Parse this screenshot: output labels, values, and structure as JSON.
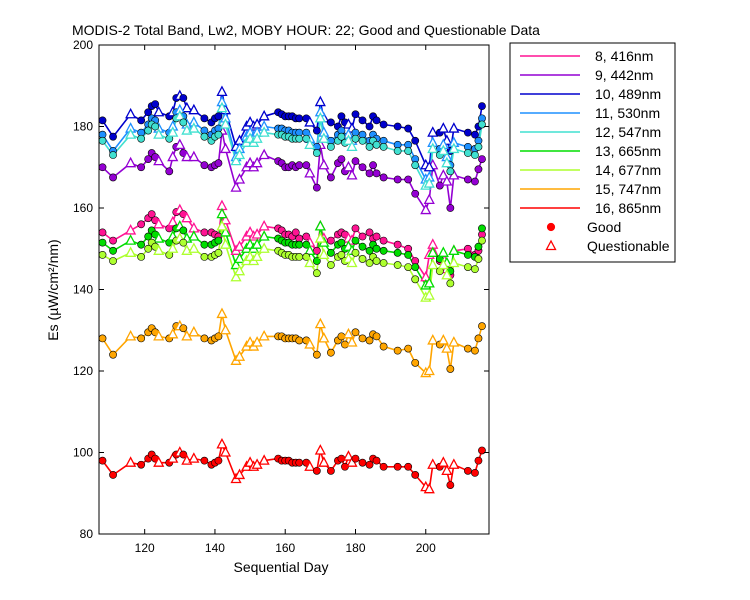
{
  "chart_data": {
    "type": "line",
    "title": "MODIS-2 Total Band,  Lw2, MOBY HOUR: 22;  Good and Questionable Data",
    "xlabel": "Sequential Day",
    "ylabel": "Es (µW/cm²/nm)",
    "xlim": [
      107,
      218
    ],
    "ylim": [
      80,
      200
    ],
    "xticks": [
      120,
      140,
      160,
      180,
      200
    ],
    "yticks": [
      80,
      100,
      120,
      140,
      160,
      180,
      200
    ],
    "grid": false,
    "legend_position": "right",
    "marker_legend": [
      {
        "label": "Good",
        "marker": "circle"
      },
      {
        "label": "Questionable",
        "marker": "triangle"
      }
    ],
    "x": [
      108,
      111,
      116,
      119,
      121,
      122,
      123,
      124,
      127,
      128,
      129,
      130,
      131,
      132,
      134,
      137,
      139,
      140,
      141,
      142,
      143,
      146,
      147,
      149,
      150,
      151,
      152,
      154,
      158,
      159,
      160,
      161,
      162,
      163,
      164,
      166,
      167,
      169,
      170,
      171,
      173,
      175,
      176,
      177,
      178,
      179,
      180,
      182,
      184,
      185,
      186,
      188,
      192,
      195,
      197,
      200,
      201,
      202,
      204,
      205,
      206,
      207,
      208,
      212,
      214,
      215,
      216
    ],
    "quality": [
      "G",
      "G",
      "Q",
      "G",
      "G",
      "G",
      "G",
      "Q",
      "G",
      "Q",
      "G",
      "Q",
      "G",
      "Q",
      "Q",
      "G",
      "G",
      "G",
      "G",
      "Q",
      "Q",
      "Q",
      "Q",
      "Q",
      "Q",
      "Q",
      "Q",
      "Q",
      "G",
      "G",
      "G",
      "G",
      "G",
      "G",
      "G",
      "G",
      "Q",
      "G",
      "Q",
      "Q",
      "G",
      "G",
      "G",
      "G",
      "Q",
      "Q",
      "G",
      "G",
      "G",
      "G",
      "G",
      "G",
      "G",
      "G",
      "G",
      "Q",
      "Q",
      "Q",
      "G",
      "Q",
      "Q",
      "G",
      "Q",
      "G",
      "G",
      "G",
      "G"
    ],
    "series": [
      {
        "name": "8, 416nm",
        "color": "#ff1493",
        "values": [
          154.0,
          152.0,
          154.5,
          156.0,
          157.5,
          158.5,
          157.0,
          156.0,
          155.0,
          156.5,
          159.0,
          159.5,
          158.5,
          157.5,
          155.0,
          154.0,
          154.0,
          153.5,
          153.0,
          160.5,
          157.0,
          149.5,
          150.5,
          153.0,
          154.0,
          153.0,
          153.5,
          155.5,
          155.0,
          154.5,
          153.5,
          153.5,
          153.0,
          154.0,
          152.5,
          153.0,
          151.5,
          149.5,
          155.5,
          152.5,
          152.0,
          153.5,
          154.0,
          153.5,
          152.5,
          152.0,
          155.0,
          153.0,
          154.0,
          152.5,
          153.0,
          152.0,
          151.0,
          150.0,
          147.0,
          143.0,
          148.5,
          151.0,
          147.0,
          147.5,
          145.0,
          143.5,
          149.5,
          150.0,
          148.5,
          149.5,
          153.5
        ]
      },
      {
        "name": "9, 442nm",
        "color": "#9400d3",
        "values": [
          170.0,
          167.5,
          171.0,
          170.0,
          172.0,
          173.5,
          172.5,
          171.5,
          169.0,
          172.5,
          175.0,
          175.5,
          173.5,
          172.5,
          172.5,
          170.5,
          170.0,
          170.5,
          171.0,
          179.0,
          174.5,
          165.0,
          167.0,
          170.0,
          171.0,
          170.0,
          171.0,
          173.0,
          171.5,
          171.0,
          170.0,
          170.0,
          170.5,
          170.0,
          170.5,
          170.5,
          168.5,
          165.0,
          175.5,
          170.5,
          167.5,
          171.0,
          172.0,
          169.0,
          170.0,
          168.0,
          171.5,
          170.0,
          168.5,
          170.5,
          168.5,
          167.5,
          167.0,
          167.0,
          163.5,
          159.5,
          162.0,
          170.5,
          165.5,
          168.0,
          166.5,
          160.0,
          168.0,
          167.0,
          166.5,
          169.5,
          172.0
        ]
      },
      {
        "name": "10, 489nm",
        "color": "#0000cd",
        "values": [
          181.5,
          177.5,
          183.0,
          181.5,
          183.5,
          185.0,
          185.5,
          183.5,
          182.5,
          183.5,
          187.0,
          187.5,
          187.0,
          184.5,
          184.0,
          182.0,
          181.0,
          182.0,
          182.5,
          188.5,
          184.0,
          175.0,
          176.5,
          180.0,
          181.0,
          180.0,
          180.5,
          182.5,
          183.5,
          183.0,
          182.5,
          182.5,
          182.5,
          182.0,
          182.0,
          182.0,
          181.0,
          179.0,
          186.0,
          182.0,
          181.0,
          180.0,
          182.5,
          181.0,
          180.5,
          179.5,
          183.0,
          181.5,
          180.0,
          182.5,
          181.5,
          180.5,
          180.0,
          179.5,
          176.5,
          170.5,
          170.0,
          178.5,
          178.5,
          179.5,
          176.5,
          174.0,
          179.5,
          178.5,
          178.0,
          180.0,
          185.0
        ]
      },
      {
        "name": "11, 530nm",
        "color": "#1e90ff",
        "values": [
          178.0,
          174.0,
          179.5,
          178.5,
          180.5,
          182.0,
          181.5,
          179.5,
          178.5,
          180.0,
          183.5,
          184.0,
          182.5,
          180.5,
          181.0,
          179.0,
          178.0,
          179.0,
          179.5,
          186.0,
          182.0,
          172.5,
          174.5,
          177.5,
          178.5,
          177.5,
          178.5,
          180.0,
          179.5,
          179.5,
          179.0,
          179.0,
          178.5,
          178.5,
          178.5,
          178.5,
          177.0,
          175.0,
          183.5,
          178.5,
          176.5,
          178.0,
          179.0,
          177.5,
          178.0,
          176.5,
          178.5,
          178.0,
          176.5,
          178.0,
          177.0,
          176.5,
          175.5,
          175.5,
          172.0,
          167.0,
          167.5,
          176.0,
          174.5,
          175.5,
          172.5,
          170.5,
          176.0,
          175.0,
          174.5,
          176.5,
          182.0
        ]
      },
      {
        "name": "12, 547nm",
        "color": "#40e0d0",
        "values": [
          176.5,
          173.0,
          178.0,
          177.0,
          179.0,
          180.5,
          180.0,
          178.0,
          177.0,
          178.5,
          182.0,
          182.5,
          181.0,
          179.0,
          179.5,
          177.5,
          176.5,
          177.5,
          178.0,
          184.5,
          180.5,
          171.5,
          173.0,
          176.0,
          177.0,
          176.0,
          177.0,
          178.5,
          178.0,
          178.0,
          177.5,
          177.5,
          177.0,
          177.0,
          177.0,
          177.0,
          175.5,
          173.5,
          182.0,
          177.0,
          175.0,
          176.5,
          177.5,
          176.0,
          176.5,
          175.0,
          177.0,
          176.5,
          175.0,
          176.5,
          175.5,
          175.0,
          174.0,
          174.0,
          170.5,
          165.5,
          166.0,
          174.5,
          173.0,
          174.0,
          171.0,
          169.0,
          174.5,
          173.5,
          173.0,
          175.0,
          180.5
        ]
      },
      {
        "name": "13, 665nm",
        "color": "#00dd00",
        "values": [
          151.5,
          149.5,
          152.0,
          151.0,
          153.0,
          154.5,
          153.5,
          152.5,
          151.5,
          153.0,
          155.0,
          155.5,
          154.5,
          152.5,
          153.0,
          151.0,
          151.0,
          151.5,
          152.0,
          158.5,
          154.0,
          146.0,
          147.5,
          150.0,
          151.0,
          150.0,
          151.0,
          153.0,
          152.5,
          152.0,
          151.5,
          151.5,
          151.0,
          151.0,
          151.0,
          151.0,
          149.5,
          147.0,
          155.5,
          151.5,
          149.0,
          151.0,
          151.5,
          150.0,
          150.5,
          149.5,
          152.0,
          150.5,
          149.5,
          151.0,
          150.0,
          149.5,
          149.0,
          148.5,
          145.5,
          141.0,
          141.5,
          149.0,
          147.5,
          149.0,
          146.5,
          144.5,
          149.5,
          148.5,
          148.0,
          150.5,
          155.0
        ]
      },
      {
        "name": "14, 677nm",
        "color": "#adff2f",
        "values": [
          148.5,
          147.0,
          149.0,
          148.0,
          150.0,
          151.5,
          150.5,
          149.5,
          148.5,
          150.0,
          152.0,
          152.5,
          151.5,
          149.5,
          150.0,
          148.0,
          148.0,
          148.5,
          149.0,
          155.5,
          151.0,
          143.0,
          144.5,
          147.0,
          148.0,
          147.0,
          148.0,
          150.0,
          149.5,
          149.0,
          148.5,
          148.5,
          148.0,
          148.0,
          148.0,
          148.0,
          146.5,
          144.0,
          152.5,
          148.5,
          146.0,
          148.0,
          148.5,
          147.0,
          147.5,
          146.5,
          149.0,
          147.5,
          146.5,
          148.0,
          147.0,
          146.5,
          146.0,
          145.5,
          142.5,
          138.0,
          138.5,
          146.0,
          144.5,
          146.0,
          143.5,
          141.5,
          146.5,
          145.5,
          145.0,
          147.5,
          152.0
        ]
      },
      {
        "name": "15, 747nm",
        "color": "#ffa500",
        "values": [
          128.0,
          124.0,
          128.5,
          128.0,
          129.5,
          130.5,
          129.5,
          128.5,
          128.0,
          129.0,
          131.0,
          131.0,
          130.5,
          128.5,
          129.5,
          128.0,
          127.5,
          128.0,
          128.5,
          134.0,
          130.0,
          122.5,
          123.5,
          126.0,
          127.0,
          126.0,
          127.0,
          128.5,
          128.5,
          128.5,
          128.0,
          128.0,
          128.0,
          128.0,
          127.5,
          127.5,
          126.5,
          124.0,
          131.5,
          128.0,
          124.5,
          127.5,
          128.5,
          126.5,
          129.0,
          127.0,
          129.5,
          128.0,
          127.5,
          129.0,
          128.5,
          126.0,
          125.0,
          125.5,
          122.0,
          119.5,
          120.0,
          127.5,
          126.5,
          127.5,
          125.5,
          120.5,
          127.0,
          125.5,
          125.0,
          128.0,
          131.0
        ]
      },
      {
        "name": "16, 865nm",
        "color": "#ff0000",
        "values": [
          98.0,
          94.5,
          97.5,
          97.0,
          98.5,
          99.5,
          98.5,
          97.5,
          97.5,
          98.5,
          99.5,
          100.0,
          99.5,
          98.0,
          98.5,
          98.0,
          97.0,
          97.5,
          98.0,
          102.0,
          100.0,
          93.5,
          94.5,
          96.5,
          97.5,
          96.5,
          97.0,
          98.0,
          98.5,
          98.0,
          98.0,
          98.0,
          97.5,
          97.5,
          97.5,
          97.5,
          96.5,
          95.5,
          100.5,
          97.5,
          95.5,
          98.0,
          98.5,
          96.5,
          99.0,
          97.5,
          98.5,
          97.5,
          97.0,
          98.5,
          98.0,
          96.5,
          96.5,
          96.5,
          94.5,
          91.5,
          91.0,
          97.0,
          96.5,
          97.5,
          95.5,
          92.0,
          97.0,
          95.5,
          95.0,
          98.0,
          100.5
        ]
      }
    ]
  }
}
